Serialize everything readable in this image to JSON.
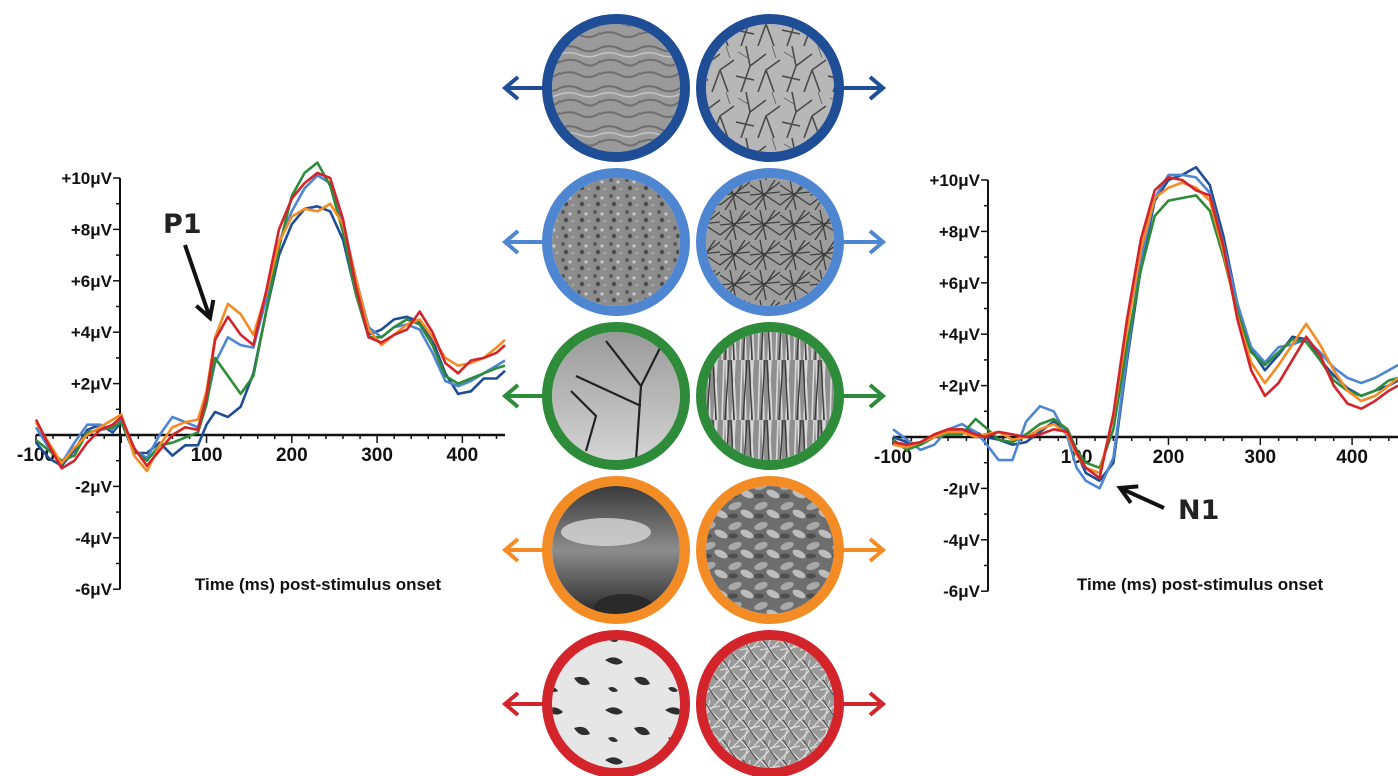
{
  "chart_data": [
    {
      "type": "line",
      "xlabel": "Time (ms) post-stimulus onset",
      "ylabel": "",
      "xlim": [
        -100,
        450
      ],
      "ylim": [
        -6,
        10
      ],
      "xticks": [
        -100,
        100,
        200,
        300,
        400
      ],
      "xtick_labels": [
        "-100",
        "100",
        "200",
        "300",
        "400"
      ],
      "yticks": [
        10,
        8,
        6,
        4,
        2,
        -2,
        -4,
        -6
      ],
      "ytick_labels": [
        "+10μV",
        "+8μV",
        "+6μV",
        "+4μV",
        "+2μV",
        "-2μV",
        "-4μV",
        "-6μV"
      ],
      "annotation": {
        "text": "P1",
        "target": [
          108,
          4.3
        ]
      },
      "series": [
        {
          "color": "#1f4e96",
          "x": [
            -100,
            -85,
            -70,
            -55,
            -40,
            -25,
            -10,
            0,
            15,
            30,
            45,
            60,
            75,
            90,
            100,
            110,
            125,
            140,
            155,
            170,
            185,
            200,
            215,
            230,
            245,
            260,
            275,
            290,
            305,
            320,
            335,
            350,
            365,
            380,
            395,
            410,
            425,
            440,
            450
          ],
          "y": [
            -0.3,
            -0.9,
            -1.2,
            -0.6,
            0.2,
            0.4,
            0.1,
            0.5,
            -0.7,
            -0.7,
            -0.3,
            -0.8,
            -0.4,
            -0.4,
            0.4,
            0.9,
            0.7,
            1.1,
            2.4,
            4.8,
            7.0,
            8.2,
            8.8,
            8.9,
            8.7,
            7.6,
            5.5,
            3.9,
            4.1,
            4.5,
            4.6,
            4.4,
            3.7,
            2.4,
            1.6,
            1.7,
            2.2,
            2.2,
            2.5
          ]
        },
        {
          "color": "#4f86d1",
          "x": [
            -100,
            -85,
            -70,
            -55,
            -40,
            -25,
            -10,
            0,
            15,
            30,
            45,
            60,
            75,
            90,
            100,
            110,
            125,
            140,
            155,
            170,
            185,
            200,
            215,
            230,
            245,
            260,
            275,
            290,
            305,
            320,
            335,
            350,
            365,
            380,
            395,
            410,
            425,
            440,
            450
          ],
          "y": [
            0.3,
            -0.5,
            -1.1,
            -0.3,
            0.4,
            0.4,
            0.2,
            0.6,
            -0.6,
            -0.9,
            0.0,
            0.7,
            0.5,
            0.3,
            1.3,
            2.8,
            3.8,
            3.5,
            3.4,
            5.3,
            7.5,
            8.7,
            9.6,
            10.1,
            9.8,
            8.3,
            6.1,
            4.2,
            3.8,
            4.2,
            4.3,
            4.1,
            3.2,
            2.1,
            1.9,
            2.1,
            2.4,
            2.7,
            2.9
          ]
        },
        {
          "color": "#2e8b3a",
          "x": [
            -100,
            -85,
            -70,
            -55,
            -40,
            -25,
            -10,
            0,
            15,
            30,
            45,
            60,
            75,
            90,
            100,
            110,
            125,
            140,
            155,
            170,
            185,
            200,
            215,
            230,
            245,
            260,
            275,
            290,
            305,
            320,
            335,
            350,
            365,
            380,
            395,
            410,
            425,
            440,
            450
          ],
          "y": [
            -0.2,
            -0.6,
            -1.0,
            -0.8,
            0.1,
            0.2,
            0.3,
            0.5,
            -0.6,
            -1.0,
            -0.4,
            -0.3,
            -0.1,
            0.1,
            1.2,
            3.0,
            2.3,
            1.6,
            2.3,
            4.8,
            7.3,
            9.3,
            10.2,
            10.6,
            9.7,
            7.9,
            5.5,
            3.8,
            3.8,
            4.2,
            4.5,
            4.3,
            3.5,
            2.3,
            2.0,
            2.2,
            2.4,
            2.6,
            2.7
          ]
        },
        {
          "color": "#f48c26",
          "x": [
            -100,
            -85,
            -70,
            -55,
            -40,
            -25,
            -10,
            0,
            15,
            30,
            45,
            60,
            75,
            90,
            100,
            110,
            125,
            140,
            155,
            170,
            185,
            200,
            215,
            230,
            245,
            260,
            275,
            290,
            305,
            320,
            335,
            350,
            365,
            380,
            395,
            410,
            425,
            440,
            450
          ],
          "y": [
            0.5,
            -0.3,
            -1.1,
            -0.5,
            0.0,
            0.3,
            0.6,
            0.8,
            -0.8,
            -1.4,
            -0.4,
            0.3,
            0.5,
            0.6,
            1.7,
            3.8,
            5.1,
            4.7,
            3.9,
            5.5,
            7.5,
            8.5,
            8.8,
            8.7,
            9.0,
            8.2,
            6.1,
            4.1,
            3.5,
            3.9,
            4.3,
            4.5,
            3.8,
            3.0,
            2.7,
            2.8,
            3.0,
            3.4,
            3.7
          ]
        },
        {
          "color": "#d3242b",
          "x": [
            -100,
            -85,
            -70,
            -55,
            -40,
            -25,
            -10,
            0,
            15,
            30,
            45,
            60,
            75,
            90,
            100,
            110,
            125,
            140,
            155,
            170,
            185,
            200,
            215,
            230,
            245,
            260,
            275,
            290,
            305,
            320,
            335,
            350,
            365,
            380,
            395,
            410,
            425,
            440,
            450
          ],
          "y": [
            0.6,
            -0.4,
            -1.3,
            -1.0,
            -0.3,
            0.2,
            0.4,
            0.7,
            -0.5,
            -1.2,
            -0.6,
            0.0,
            0.3,
            0.2,
            1.5,
            3.7,
            4.6,
            3.9,
            3.5,
            5.6,
            8.0,
            9.2,
            9.8,
            10.2,
            10.0,
            8.4,
            5.8,
            3.8,
            3.6,
            3.9,
            4.1,
            4.8,
            4.0,
            2.8,
            2.4,
            2.9,
            3.0,
            3.2,
            3.5
          ]
        }
      ]
    },
    {
      "type": "line",
      "xlabel": "Time (ms) post-stimulus onset",
      "ylabel": "",
      "xlim": [
        -100,
        450
      ],
      "ylim": [
        -6,
        10
      ],
      "xticks": [
        -100,
        100,
        200,
        300,
        400
      ],
      "xtick_labels": [
        "-100",
        "100",
        "200",
        "300",
        "400"
      ],
      "yticks": [
        10,
        8,
        6,
        4,
        2,
        -2,
        -4,
        -6
      ],
      "ytick_labels": [
        "+10μV",
        "+8μV",
        "+6μV",
        "+4μV",
        "+2μV",
        "-2μV",
        "-4μV",
        "-6μV"
      ],
      "annotation": {
        "text": "N1",
        "target": [
          135,
          -1.9
        ]
      },
      "series": [
        {
          "color": "#1f4e96",
          "x": [
            -100,
            -85,
            -70,
            -55,
            -40,
            -25,
            -10,
            0,
            15,
            30,
            45,
            60,
            75,
            90,
            100,
            110,
            125,
            140,
            155,
            170,
            185,
            200,
            215,
            230,
            245,
            260,
            275,
            290,
            305,
            320,
            335,
            350,
            365,
            380,
            395,
            410,
            425,
            440,
            450
          ],
          "y": [
            0.0,
            -0.2,
            -0.3,
            0.0,
            0.2,
            0.3,
            0.2,
            0.0,
            -0.1,
            -0.3,
            -0.2,
            0.2,
            0.6,
            0.2,
            -0.6,
            -1.4,
            -1.7,
            -1.0,
            3.0,
            6.6,
            9.2,
            10.0,
            10.2,
            10.5,
            9.8,
            7.8,
            5.2,
            3.4,
            2.6,
            3.2,
            3.9,
            3.8,
            3.0,
            2.4,
            1.9,
            1.6,
            1.8,
            2.0,
            2.2
          ]
        },
        {
          "color": "#4f86d1",
          "x": [
            -100,
            -85,
            -70,
            -55,
            -40,
            -25,
            -10,
            0,
            15,
            30,
            45,
            60,
            75,
            90,
            100,
            110,
            125,
            140,
            155,
            170,
            185,
            200,
            215,
            230,
            245,
            260,
            275,
            290,
            305,
            320,
            335,
            350,
            365,
            380,
            395,
            410,
            425,
            440,
            450
          ],
          "y": [
            0.3,
            -0.1,
            -0.5,
            -0.3,
            0.3,
            0.5,
            0.2,
            -0.2,
            -0.9,
            -0.9,
            0.6,
            1.2,
            1.0,
            0.0,
            -1.2,
            -1.7,
            -2.0,
            -0.8,
            3.2,
            6.9,
            9.3,
            10.2,
            10.2,
            10.1,
            9.5,
            7.5,
            5.2,
            3.5,
            2.9,
            3.5,
            3.6,
            3.8,
            3.3,
            2.7,
            2.3,
            2.1,
            2.3,
            2.6,
            2.8
          ]
        },
        {
          "color": "#2e8b3a",
          "x": [
            -100,
            -85,
            -70,
            -55,
            -40,
            -25,
            -10,
            0,
            15,
            30,
            45,
            60,
            75,
            90,
            100,
            110,
            125,
            140,
            155,
            170,
            185,
            200,
            215,
            230,
            245,
            260,
            275,
            290,
            305,
            320,
            335,
            350,
            365,
            380,
            395,
            410,
            425,
            440,
            450
          ],
          "y": [
            -0.1,
            -0.5,
            -0.3,
            0.0,
            0.1,
            0.1,
            0.7,
            0.4,
            -0.1,
            -0.2,
            0.1,
            0.5,
            0.7,
            0.3,
            -0.5,
            -1.0,
            -1.2,
            0.3,
            3.6,
            6.5,
            8.6,
            9.2,
            9.3,
            9.4,
            8.8,
            7.0,
            4.9,
            3.3,
            2.8,
            3.3,
            3.8,
            3.7,
            3.0,
            2.2,
            1.8,
            1.6,
            1.8,
            2.2,
            2.3
          ]
        },
        {
          "color": "#f48c26",
          "x": [
            -100,
            -85,
            -70,
            -55,
            -40,
            -25,
            -10,
            0,
            15,
            30,
            45,
            60,
            75,
            90,
            100,
            110,
            125,
            140,
            155,
            170,
            185,
            200,
            215,
            230,
            245,
            260,
            275,
            290,
            305,
            320,
            335,
            350,
            365,
            380,
            395,
            410,
            425,
            440,
            450
          ],
          "y": [
            -0.3,
            -0.4,
            -0.2,
            0.0,
            0.2,
            0.2,
            0.0,
            0.1,
            0.2,
            -0.1,
            0.0,
            0.3,
            0.5,
            0.1,
            -0.7,
            -1.2,
            -1.4,
            0.8,
            4.2,
            7.3,
            9.3,
            9.7,
            9.9,
            9.7,
            9.2,
            7.2,
            4.7,
            2.9,
            2.1,
            2.8,
            3.6,
            4.4,
            3.6,
            2.6,
            1.8,
            1.4,
            1.6,
            2.0,
            2.3
          ]
        },
        {
          "color": "#d3242b",
          "x": [
            -100,
            -85,
            -70,
            -55,
            -40,
            -25,
            -10,
            0,
            15,
            30,
            45,
            60,
            75,
            90,
            100,
            110,
            125,
            140,
            155,
            170,
            185,
            200,
            215,
            230,
            245,
            260,
            275,
            290,
            305,
            320,
            335,
            350,
            365,
            380,
            395,
            410,
            425,
            440,
            450
          ],
          "y": [
            -0.2,
            -0.3,
            -0.2,
            0.1,
            0.3,
            0.3,
            0.1,
            0.0,
            0.2,
            0.1,
            0.0,
            0.1,
            0.3,
            0.2,
            -0.6,
            -1.2,
            -1.6,
            0.9,
            4.6,
            7.7,
            9.6,
            10.1,
            10.0,
            9.6,
            9.4,
            7.4,
            4.6,
            2.6,
            1.6,
            2.1,
            3.0,
            3.9,
            3.2,
            2.0,
            1.3,
            1.1,
            1.4,
            1.8,
            2.0
          ]
        }
      ]
    }
  ],
  "stimuli": [
    {
      "color": "#1f4e96",
      "left": "sand-ripple-texture",
      "right": "bare-branches-texture"
    },
    {
      "color": "#4f86d1",
      "left": "gravel-slope-texture",
      "right": "tangled-branches-texture"
    },
    {
      "color": "#2e8b3a",
      "left": "tree-silhouette-sky",
      "right": "tall-grass-texture"
    },
    {
      "color": "#f48c26",
      "left": "clouds-sky",
      "right": "fallen-leaves-texture"
    },
    {
      "color": "#d3242b",
      "left": "snow-patches",
      "right": "dry-grass-texture"
    }
  ]
}
